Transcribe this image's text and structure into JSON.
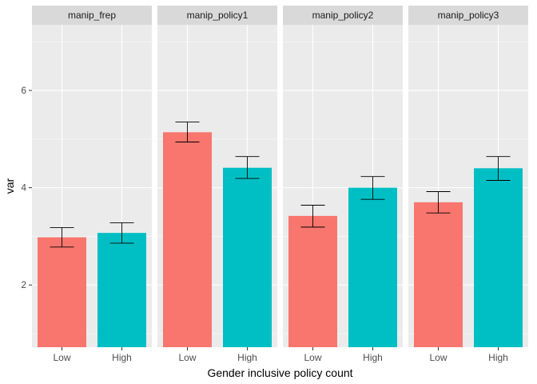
{
  "chart_data": {
    "type": "bar",
    "facets": [
      "manip_frep",
      "manip_policy1",
      "manip_policy2",
      "manip_policy3"
    ],
    "categories": [
      "Low",
      "High"
    ],
    "values": [
      [
        2.98,
        3.07
      ],
      [
        5.14,
        4.41
      ],
      [
        3.42,
        4.0
      ],
      [
        3.7,
        4.4
      ]
    ],
    "error_low": [
      [
        2.78,
        2.86
      ],
      [
        4.94,
        4.19
      ],
      [
        3.19,
        3.76
      ],
      [
        3.48,
        4.15
      ]
    ],
    "error_high": [
      [
        3.18,
        3.28
      ],
      [
        5.35,
        4.64
      ],
      [
        3.64,
        4.23
      ],
      [
        3.92,
        4.64
      ]
    ],
    "xlabel": "Gender inclusive policy count",
    "ylabel": "var",
    "ylim": [
      0.72,
      7.35
    ],
    "yticks": [
      2,
      4,
      6
    ],
    "grid": true,
    "colors": {
      "Low": "#F8766D",
      "High": "#00BFC4",
      "panel": "#EBEBEB",
      "strip": "#D9D9D9",
      "grid": "#FFFFFF"
    }
  }
}
